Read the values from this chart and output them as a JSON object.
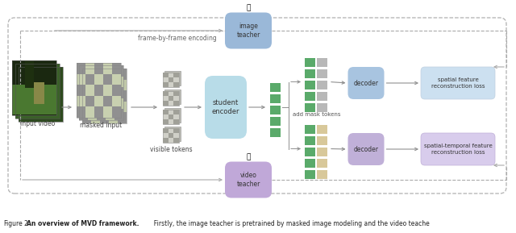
{
  "bg_color": "#ffffff",
  "dashed_border_color": "#b0b0b0",
  "image_teacher_box_color": "#9ab8d8",
  "video_teacher_box_color": "#c0a8d8",
  "student_encoder_box_color": "#b8dce8",
  "decoder_top_box_color": "#a8c4e0",
  "decoder_bottom_box_color": "#c0b0d8",
  "loss_top_box_color": "#cce0f0",
  "loss_bottom_box_color": "#d8ccec",
  "green_bar_color": "#5aaa6a",
  "gray_bar_color": "#b8b8b8",
  "tan_bar_color": "#d8c89a",
  "arrow_color": "#909090",
  "dashed_arrow_color": "#aaaaaa",
  "text_color": "#444444",
  "caption_normal": "igure 2  ",
  "caption_bold": "An overview of MVD framework.",
  "caption_rest": "  Firstly, the image teacher is pretrained by masked image modeling and the video teache"
}
